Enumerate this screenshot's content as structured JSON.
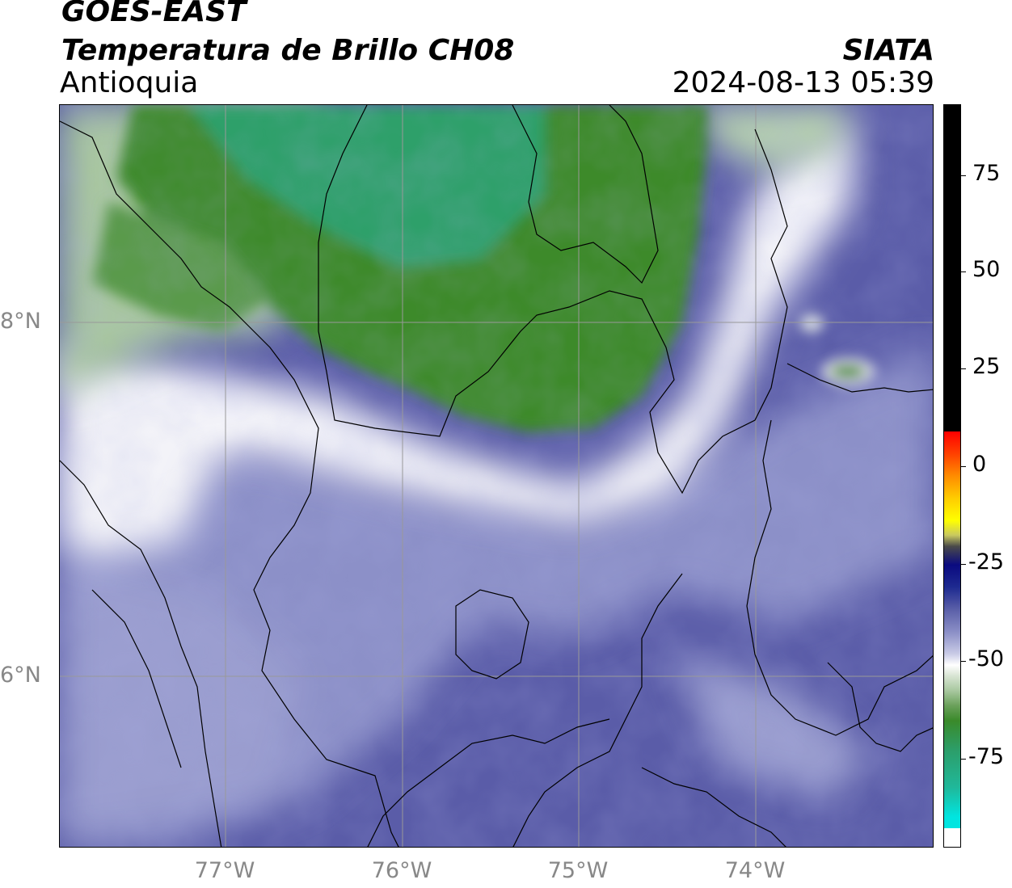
{
  "header": {
    "title_line1": "GOES-EAST",
    "title_line2": "Temperatura de Brillo CH08",
    "region": "Antioquia",
    "organization": "SIATA",
    "datetime": "2024-08-13 05:39"
  },
  "axes": {
    "x_ticks": [
      "77°W",
      "76°W",
      "75°W",
      "74°W"
    ],
    "y_ticks": [
      "8°N",
      "6°N"
    ]
  },
  "colorbar": {
    "ticks": [
      "75",
      "50",
      "25",
      "0",
      "-25",
      "-50",
      "-75"
    ],
    "colors": {
      "hot": "#000000",
      "red": "#ff0000",
      "orange": "#ff8c00",
      "yellow": "#ffff00",
      "navy": "#0a0a80",
      "slate_blue": "#5a5fa8",
      "white": "#ffffff",
      "green": "#3a8a2a",
      "teal": "#20b89a",
      "cyan": "#00e5e0"
    }
  },
  "map": {
    "colors": {
      "cold_cloud_green": "#3f8a2c",
      "cloud_teal": "#2c9e6a",
      "transition_white": "#f4f4f8",
      "mid_blue": "#8a8ec6",
      "deep_blue": "#5a5ca8",
      "border_line": "#000000",
      "grid_line": "#999999"
    }
  }
}
